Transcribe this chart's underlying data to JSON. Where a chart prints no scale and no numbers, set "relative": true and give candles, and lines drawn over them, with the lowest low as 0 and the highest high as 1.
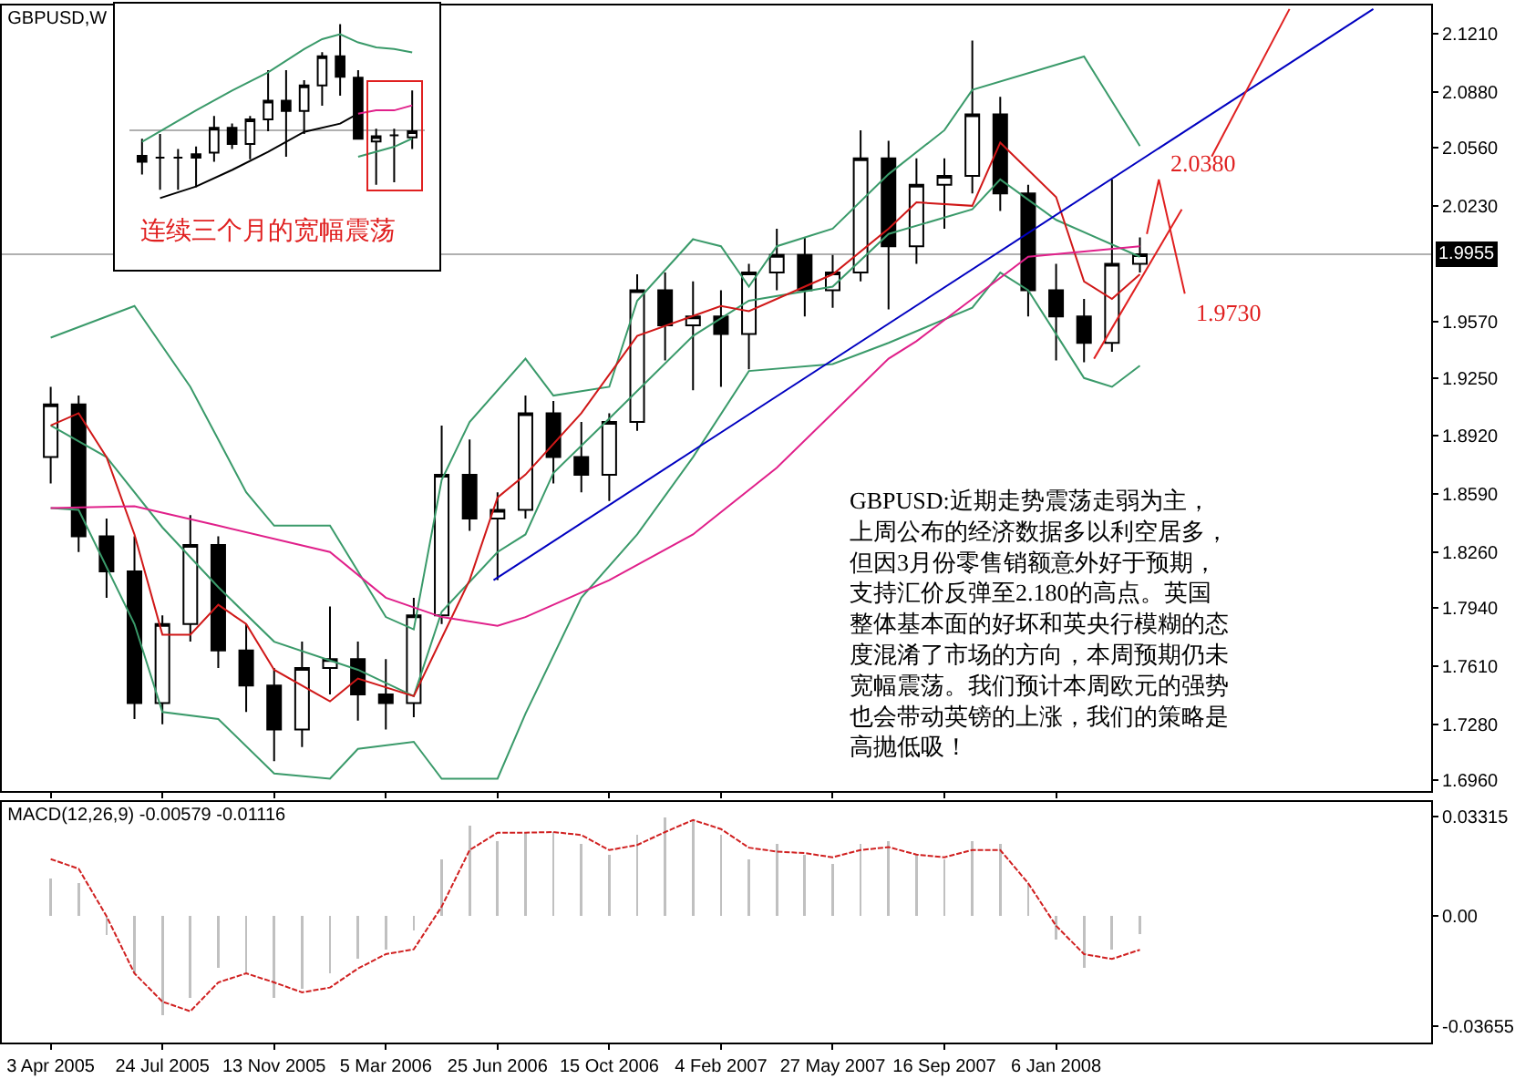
{
  "chart_data": [
    {
      "type": "candlestick",
      "title": "GBPUSD,W",
      "x": [
        "2005-04-03",
        "2005-05-01",
        "2005-05-29",
        "2005-06-26",
        "2005-07-24",
        "2005-08-21",
        "2005-09-18",
        "2005-10-16",
        "2005-11-13",
        "2005-12-11",
        "2006-01-08",
        "2006-02-05",
        "2006-03-05",
        "2006-04-02",
        "2006-04-30",
        "2006-05-28",
        "2006-06-25",
        "2006-07-23",
        "2006-08-20",
        "2006-09-17",
        "2006-10-15",
        "2006-11-12",
        "2006-12-10",
        "2007-01-07",
        "2007-02-04",
        "2007-03-04",
        "2007-04-01",
        "2007-04-29",
        "2007-05-27",
        "2007-06-24",
        "2007-07-22",
        "2007-08-19",
        "2007-09-16",
        "2007-10-14",
        "2007-11-11",
        "2007-12-09",
        "2008-01-06",
        "2008-02-03",
        "2008-03-02",
        "2008-03-30"
      ],
      "ohlc": [
        [
          1.88,
          1.92,
          1.865,
          1.91
        ],
        [
          1.91,
          1.915,
          1.826,
          1.835
        ],
        [
          1.835,
          1.845,
          1.8,
          1.815
        ],
        [
          1.815,
          1.835,
          1.731,
          1.74
        ],
        [
          1.74,
          1.79,
          1.728,
          1.785
        ],
        [
          1.785,
          1.847,
          1.775,
          1.83
        ],
        [
          1.83,
          1.835,
          1.76,
          1.77
        ],
        [
          1.77,
          1.785,
          1.735,
          1.75
        ],
        [
          1.75,
          1.76,
          1.707,
          1.725
        ],
        [
          1.725,
          1.775,
          1.715,
          1.76
        ],
        [
          1.76,
          1.795,
          1.745,
          1.765
        ],
        [
          1.765,
          1.775,
          1.73,
          1.745
        ],
        [
          1.745,
          1.765,
          1.725,
          1.74
        ],
        [
          1.74,
          1.8,
          1.732,
          1.79
        ],
        [
          1.79,
          1.898,
          1.785,
          1.87
        ],
        [
          1.87,
          1.89,
          1.838,
          1.845
        ],
        [
          1.845,
          1.86,
          1.81,
          1.85
        ],
        [
          1.85,
          1.915,
          1.845,
          1.905
        ],
        [
          1.905,
          1.912,
          1.865,
          1.88
        ],
        [
          1.88,
          1.9,
          1.86,
          1.87
        ],
        [
          1.87,
          1.905,
          1.855,
          1.9
        ],
        [
          1.9,
          1.984,
          1.895,
          1.975
        ],
        [
          1.975,
          1.985,
          1.935,
          1.955
        ],
        [
          1.955,
          1.98,
          1.918,
          1.96
        ],
        [
          1.96,
          1.975,
          1.92,
          1.95
        ],
        [
          1.95,
          1.99,
          1.93,
          1.985
        ],
        [
          1.985,
          2.01,
          1.975,
          1.995
        ],
        [
          1.995,
          2.005,
          1.96,
          1.975
        ],
        [
          1.975,
          1.995,
          1.965,
          1.985
        ],
        [
          1.985,
          2.066,
          1.98,
          2.05
        ],
        [
          2.05,
          2.06,
          1.964,
          2.0
        ],
        [
          2.0,
          2.05,
          1.99,
          2.035
        ],
        [
          2.035,
          2.05,
          2.01,
          2.04
        ],
        [
          2.04,
          2.117,
          2.03,
          2.075
        ],
        [
          2.075,
          2.085,
          2.02,
          2.03
        ],
        [
          2.03,
          2.035,
          1.96,
          1.975
        ],
        [
          1.975,
          1.99,
          1.935,
          1.96
        ],
        [
          1.96,
          1.97,
          1.934,
          1.945
        ],
        [
          1.945,
          2.038,
          1.94,
          1.99
        ],
        [
          1.99,
          2.005,
          1.985,
          1.9955
        ]
      ],
      "series": [
        {
          "type": "line",
          "color": "#3a9a6a",
          "x": [
            "2005-04-03",
            "2005-06-26",
            "2005-08-21",
            "2005-09-18",
            "2005-10-16",
            "2005-11-13",
            "2006-01-08",
            "2006-03-05",
            "2006-04-02",
            "2006-04-30",
            "2006-05-28",
            "2006-07-23",
            "2006-08-20",
            "2006-10-15",
            "2006-11-12",
            "2007-01-07",
            "2007-02-04",
            "2007-03-04",
            "2007-04-01",
            "2007-05-27",
            "2007-07-22",
            "2007-09-16",
            "2007-10-14",
            "2008-02-03",
            "2008-03-30"
          ],
          "values": [
            1.948,
            1.966,
            1.92,
            1.89,
            1.86,
            1.841,
            1.841,
            1.789,
            1.782,
            1.867,
            1.9,
            1.936,
            1.915,
            1.92,
            1.969,
            2.004,
            2.0,
            1.977,
            2.0,
            2.01,
            2.041,
            2.066,
            2.089,
            2.108,
            2.057
          ]
        },
        {
          "type": "line",
          "color": "#3a9a6a",
          "x": [
            "2005-04-03",
            "2005-05-29",
            "2005-07-24",
            "2005-09-18",
            "2005-11-13",
            "2006-02-05",
            "2006-04-02",
            "2006-04-30",
            "2006-06-25",
            "2006-07-23",
            "2006-08-20",
            "2006-10-15",
            "2007-01-07",
            "2007-03-04",
            "2007-05-27",
            "2007-07-22",
            "2007-10-14",
            "2007-11-11",
            "2008-01-06",
            "2008-03-30"
          ],
          "values": [
            1.898,
            1.88,
            1.84,
            1.806,
            1.775,
            1.759,
            1.744,
            1.792,
            1.826,
            1.836,
            1.871,
            1.902,
            1.949,
            1.969,
            1.977,
            2.007,
            2.021,
            2.038,
            2.015,
            1.994
          ]
        },
        {
          "type": "line",
          "color": "#3a9a6a",
          "x": [
            "2005-04-03",
            "2005-05-01",
            "2005-06-26",
            "2005-07-24",
            "2005-09-18",
            "2005-11-13",
            "2006-01-08",
            "2006-02-05",
            "2006-04-02",
            "2006-04-30",
            "2006-06-25",
            "2006-07-23",
            "2006-09-17",
            "2006-11-12",
            "2007-01-07",
            "2007-03-04",
            "2007-05-27",
            "2007-07-22",
            "2007-10-14",
            "2007-11-11",
            "2007-12-09",
            "2008-01-06",
            "2008-02-03",
            "2008-03-02",
            "2008-03-30"
          ],
          "values": [
            1.851,
            1.85,
            1.785,
            1.735,
            1.731,
            1.7,
            1.697,
            1.714,
            1.718,
            1.697,
            1.697,
            1.734,
            1.8,
            1.836,
            1.88,
            1.929,
            1.933,
            1.945,
            1.965,
            1.985,
            1.975,
            1.95,
            1.925,
            1.92,
            1.932
          ]
        },
        {
          "type": "line",
          "color": "#d01818",
          "x": [
            "2005-04-03",
            "2005-05-01",
            "2005-05-29",
            "2005-06-26",
            "2005-07-24",
            "2005-08-21",
            "2005-09-18",
            "2005-10-16",
            "2005-11-13",
            "2006-01-08",
            "2006-02-05",
            "2006-04-02",
            "2006-05-28",
            "2006-06-25",
            "2006-07-23",
            "2006-09-17",
            "2006-11-12",
            "2007-02-04",
            "2007-03-04",
            "2007-05-27",
            "2007-07-22",
            "2007-08-19",
            "2007-10-14",
            "2007-11-11",
            "2008-01-06",
            "2008-02-03",
            "2008-03-02",
            "2008-03-30"
          ],
          "values": [
            1.898,
            1.905,
            1.88,
            1.836,
            1.779,
            1.779,
            1.796,
            1.785,
            1.759,
            1.741,
            1.754,
            1.744,
            1.81,
            1.857,
            1.87,
            1.905,
            1.949,
            1.966,
            1.963,
            1.984,
            2.01,
            2.025,
            2.023,
            2.059,
            2.028,
            1.98,
            1.97,
            1.984
          ]
        },
        {
          "type": "line",
          "color": "#e0208a",
          "x": [
            "2005-04-03",
            "2005-06-26",
            "2005-09-18",
            "2006-01-08",
            "2006-03-05",
            "2006-04-30",
            "2006-06-25",
            "2006-07-23",
            "2006-10-15",
            "2007-01-07",
            "2007-04-01",
            "2007-07-22",
            "2007-08-19",
            "2007-10-14",
            "2007-12-09",
            "2008-03-30"
          ],
          "values": [
            1.851,
            1.852,
            1.841,
            1.826,
            1.8,
            1.789,
            1.784,
            1.789,
            1.81,
            1.836,
            1.874,
            1.936,
            1.946,
            1.97,
            1.994,
            2.0
          ]
        },
        {
          "type": "line",
          "color": "#0000c0",
          "x": [
            "2006-06-21",
            "2008-11-19"
          ],
          "values": [
            1.81,
            2.135
          ]
        },
        {
          "type": "line",
          "color": "#e02020",
          "x": [
            "2008-02-13",
            "2008-05-11"
          ],
          "values": [
            1.936,
            2.021
          ]
        },
        {
          "type": "line",
          "color": "#e02020",
          "x": [
            "2008-06-10",
            "2008-08-27"
          ],
          "values": [
            2.051,
            2.135
          ]
        },
        {
          "type": "line",
          "color": "#e02020",
          "x": [
            "2008-04-06",
            "2008-04-18",
            "2008-05-14"
          ],
          "values": [
            2.007,
            2.038,
            1.973
          ]
        }
      ],
      "xlim": [
        "2005-02-13",
        "2009-01-16"
      ],
      "xticks": [
        {
          "value": "2005-04-03",
          "label": null
        },
        {
          "value": "2005-07-24",
          "label": null
        },
        {
          "value": "2005-11-13",
          "label": null
        },
        {
          "value": "2006-03-05",
          "label": null
        },
        {
          "value": "2006-06-25",
          "label": null
        },
        {
          "value": "2006-10-15",
          "label": null
        },
        {
          "value": "2007-02-04",
          "label": null
        },
        {
          "value": "2007-05-27",
          "label": null
        },
        {
          "value": "2007-09-16",
          "label": null
        },
        {
          "value": "2008-01-06",
          "label": null
        }
      ],
      "ylim": [
        1.69,
        2.137
      ],
      "yticks": [
        {
          "value": 2.121,
          "label": "2.1210"
        },
        {
          "value": 2.088,
          "label": "2.0880"
        },
        {
          "value": 2.056,
          "label": "2.0560"
        },
        {
          "value": 2.023,
          "label": "2.0230"
        },
        {
          "value": 1.957,
          "label": "1.9570"
        },
        {
          "value": 1.925,
          "label": "1.9250"
        },
        {
          "value": 1.892,
          "label": "1.8920"
        },
        {
          "value": 1.859,
          "label": "1.8590"
        },
        {
          "value": 1.826,
          "label": "1.8260"
        },
        {
          "value": 1.794,
          "label": "1.7940"
        },
        {
          "value": 1.761,
          "label": "1.7610"
        },
        {
          "value": 1.728,
          "label": "1.7280"
        },
        {
          "value": 1.696,
          "label": "1.6960"
        }
      ],
      "tick_labels": "y",
      "ref_lines": [
        {
          "axis": "y",
          "value": 1.9955,
          "label": "1.9955",
          "color": "#b0b0b0"
        }
      ],
      "annotations": [
        "GBPUSD:近期走势震荡走弱为主，上周公布的经济数据多以利空居多，但因3月份零售销额意外好于预期，支持汇价反弹至2.180的高点。英国整体基本面的好坏和英央行模糊的态度混淆了市场的方向，本周预期仍未宽幅震荡。我们预计本周欧元的强势也会带动英镑的上涨，我们的策略是高抛低吸！",
        {
          "text": "2.0380",
          "x": "2008-04-18",
          "y": 2.038
        },
        {
          "text": "1.9730",
          "x": "2008-05-14",
          "y": 1.973
        }
      ]
    },
    {
      "type": "bar",
      "title": "MACD(12,26,9) -0.00579 -0.01116",
      "x": [
        "2005-04-03",
        "2005-05-01",
        "2005-05-29",
        "2005-06-26",
        "2005-07-24",
        "2005-08-21",
        "2005-09-18",
        "2005-10-16",
        "2005-11-13",
        "2005-12-11",
        "2006-01-08",
        "2006-02-05",
        "2006-03-05",
        "2006-04-02",
        "2006-04-30",
        "2006-05-28",
        "2006-06-25",
        "2006-07-23",
        "2006-08-20",
        "2006-09-17",
        "2006-10-15",
        "2006-11-12",
        "2006-12-10",
        "2007-01-07",
        "2007-02-04",
        "2007-03-04",
        "2007-04-01",
        "2007-04-29",
        "2007-05-27",
        "2007-06-24",
        "2007-07-22",
        "2007-08-19",
        "2007-09-16",
        "2007-10-14",
        "2007-11-11",
        "2007-12-09",
        "2008-01-06",
        "2008-02-03",
        "2008-03-02",
        "2008-03-30"
      ],
      "series": [
        {
          "type": "bar",
          "color": "#c0c0c0",
          "values": [
            0.0126,
            0.011,
            -0.0063,
            -0.019,
            -0.033,
            -0.027,
            -0.017,
            -0.019,
            -0.027,
            -0.024,
            -0.019,
            -0.014,
            -0.011,
            -0.0047,
            0.019,
            0.03,
            0.025,
            0.028,
            0.028,
            0.024,
            0.0205,
            0.027,
            0.033,
            0.0316,
            0.027,
            0.019,
            0.024,
            0.0205,
            0.0174,
            0.024,
            0.025,
            0.0205,
            0.019,
            0.025,
            0.024,
            0.011,
            -0.0079,
            -0.017,
            -0.011,
            -0.00579
          ]
        },
        {
          "type": "line",
          "color": "#d02020",
          "line_style": "dashed",
          "values": [
            0.019,
            0.0158,
            0,
            -0.019,
            -0.0284,
            -0.0316,
            -0.022,
            -0.019,
            -0.022,
            -0.0253,
            -0.0237,
            -0.0174,
            -0.0126,
            -0.011,
            0.0032,
            0.022,
            0.0278,
            0.0278,
            0.028,
            0.027,
            0.022,
            0.0237,
            0.028,
            0.032,
            0.029,
            0.0228,
            0.0215,
            0.021,
            0.0196,
            0.022,
            0.023,
            0.0205,
            0.0196,
            0.022,
            0.022,
            0.011,
            -0.0032,
            -0.0126,
            -0.0142,
            -0.01116
          ]
        }
      ],
      "xlim": [
        "2005-02-13",
        "2009-01-16"
      ],
      "xticks": [
        {
          "value": "2005-04-03",
          "label": "3 Apr 2005"
        },
        {
          "value": "2005-07-24",
          "label": "24 Jul 2005"
        },
        {
          "value": "2005-11-13",
          "label": "13 Nov 2005"
        },
        {
          "value": "2006-03-05",
          "label": "5 Mar 2006"
        },
        {
          "value": "2006-06-25",
          "label": "25 Jun 2006"
        },
        {
          "value": "2006-10-15",
          "label": "15 Oct 2006"
        },
        {
          "value": "2007-02-04",
          "label": "4 Feb 2007"
        },
        {
          "value": "2007-05-27",
          "label": "27 May 2007"
        },
        {
          "value": "2007-09-16",
          "label": "16 Sep 2007"
        },
        {
          "value": "2008-01-06",
          "label": "6 Jan 2008"
        }
      ],
      "ylim": [
        -0.042,
        0.038
      ],
      "yticks": [
        0.03315,
        {
          "value": 0,
          "label": "0.00"
        },
        -0.03655
      ]
    },
    {
      "type": "candlestick",
      "relative": true,
      "tick_labels": false,
      "categories": [
        null,
        null,
        null,
        null,
        null,
        null,
        null,
        null,
        null,
        null,
        null,
        null,
        null,
        null,
        null,
        null
      ],
      "ohlc": [
        [
          0.206,
          0.308,
          0.092,
          0.169
        ],
        [
          0.194,
          0.338,
          0,
          0.194
        ],
        [
          0.194,
          0.246,
          0,
          0.194
        ],
        [
          0.194,
          0.262,
          0.015,
          0.215
        ],
        [
          0.225,
          0.446,
          0.169,
          0.375
        ],
        [
          0.375,
          0.4,
          0.246,
          0.277
        ],
        [
          0.277,
          0.446,
          0.185,
          0.425
        ],
        [
          0.425,
          0.723,
          0.354,
          0.538
        ],
        [
          0.538,
          0.723,
          0.2,
          0.477
        ],
        [
          0.477,
          0.662,
          0.338,
          0.631
        ],
        [
          0.631,
          0.831,
          0.508,
          0.806
        ],
        [
          0.806,
          1,
          0.569,
          0.683
        ],
        [
          0.677,
          0.723,
          0.308,
          0.308
        ],
        [
          0.292,
          0.369,
          0.031,
          0.323
        ],
        [
          0.329,
          0.369,
          0.046,
          0.329
        ],
        [
          0.317,
          0.6,
          0.246,
          0.354
        ]
      ],
      "series": [
        {
          "type": "line",
          "color": "#3a9a6a",
          "values": [
            0.29,
            null,
            null,
            0.48,
            null,
            0.6,
            null,
            0.71,
            null,
            0.85,
            0.91,
            0.94,
            0.89,
            0.86,
            0.85,
            0.83
          ]
        },
        {
          "type": "line",
          "color": "#000000",
          "values": [
            null,
            -0.05,
            null,
            0.02,
            null,
            0.12,
            null,
            0.23,
            null,
            0.35,
            null,
            0.4,
            0.46,
            null,
            null,
            null
          ]
        },
        {
          "type": "line",
          "color": "#e0208a",
          "values": [
            null,
            null,
            null,
            null,
            null,
            null,
            null,
            null,
            null,
            null,
            null,
            null,
            0.46,
            0.48,
            0.48,
            0.51
          ]
        },
        {
          "type": "line",
          "color": "#3a9a6a",
          "values": [
            null,
            null,
            null,
            null,
            null,
            null,
            null,
            null,
            null,
            null,
            null,
            null,
            0.2,
            0.23,
            0.26,
            0.31
          ]
        }
      ],
      "ref_lines": [
        {
          "axis": "y",
          "value": 0.36,
          "color": "#b0b0b0"
        }
      ],
      "annotations": [
        "连续三个月的宽幅震荡"
      ]
    }
  ]
}
